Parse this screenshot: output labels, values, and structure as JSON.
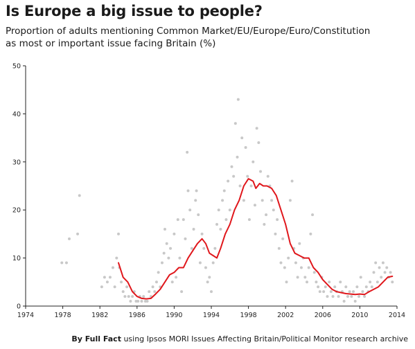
{
  "chart_data": {
    "type": "scatter",
    "title": "Is Europe a big issue to people?",
    "subtitle_lines": [
      "Proportion of adults mentioning Common Market/EU/Europe/Euro/Constitution",
      "as most or important issue facing Britain (%)"
    ],
    "xlabel": "",
    "ylabel": "",
    "xlim": [
      1974,
      2014
    ],
    "ylim": [
      0,
      50
    ],
    "x_ticks": [
      1974,
      1978,
      1982,
      1986,
      1990,
      1994,
      1998,
      2002,
      2006,
      2010,
      2014
    ],
    "y_ticks": [
      0,
      10,
      20,
      30,
      40,
      50
    ],
    "grid": false,
    "series": [
      {
        "kind": "points",
        "color": "#c8c8c8",
        "points": [
          [
            1977.9,
            9
          ],
          [
            1978.4,
            9
          ],
          [
            1978.7,
            14
          ],
          [
            1979.6,
            15
          ],
          [
            1979.8,
            23
          ],
          [
            1982.2,
            4
          ],
          [
            1982.5,
            6
          ],
          [
            1982.8,
            5
          ],
          [
            1983.1,
            6
          ],
          [
            1983.4,
            8
          ],
          [
            1983.6,
            4
          ],
          [
            1983.8,
            10
          ],
          [
            1984.0,
            15
          ],
          [
            1984.1,
            8
          ],
          [
            1984.3,
            5
          ],
          [
            1984.5,
            3
          ],
          [
            1984.7,
            2
          ],
          [
            1984.9,
            4
          ],
          [
            1985.1,
            2
          ],
          [
            1985.3,
            1
          ],
          [
            1985.5,
            2
          ],
          [
            1985.7,
            3
          ],
          [
            1985.9,
            1
          ],
          [
            1986.1,
            1
          ],
          [
            1986.3,
            2
          ],
          [
            1986.5,
            1
          ],
          [
            1986.7,
            2
          ],
          [
            1986.9,
            1
          ],
          [
            1987.1,
            1
          ],
          [
            1987.3,
            3
          ],
          [
            1987.5,
            2
          ],
          [
            1987.7,
            4
          ],
          [
            1987.9,
            3
          ],
          [
            1988.1,
            5
          ],
          [
            1988.3,
            7
          ],
          [
            1988.5,
            4
          ],
          [
            1988.7,
            9
          ],
          [
            1988.9,
            11
          ],
          [
            1989.0,
            16
          ],
          [
            1989.2,
            13
          ],
          [
            1989.4,
            10
          ],
          [
            1989.6,
            12
          ],
          [
            1989.8,
            5
          ],
          [
            1990.0,
            15
          ],
          [
            1990.2,
            6
          ],
          [
            1990.4,
            18
          ],
          [
            1990.6,
            10
          ],
          [
            1990.8,
            3
          ],
          [
            1991.0,
            18
          ],
          [
            1991.2,
            14
          ],
          [
            1991.4,
            32
          ],
          [
            1991.5,
            24
          ],
          [
            1991.7,
            20
          ],
          [
            1991.9,
            12
          ],
          [
            1992.1,
            16
          ],
          [
            1992.3,
            22
          ],
          [
            1992.4,
            24
          ],
          [
            1992.6,
            19
          ],
          [
            1992.8,
            9
          ],
          [
            1993.0,
            15
          ],
          [
            1993.2,
            12
          ],
          [
            1993.4,
            8
          ],
          [
            1993.6,
            5
          ],
          [
            1993.8,
            6
          ],
          [
            1994.0,
            3
          ],
          [
            1994.2,
            9
          ],
          [
            1994.4,
            12
          ],
          [
            1994.6,
            17
          ],
          [
            1994.8,
            20
          ],
          [
            1995.0,
            16
          ],
          [
            1995.2,
            22
          ],
          [
            1995.4,
            24
          ],
          [
            1995.6,
            18
          ],
          [
            1995.8,
            26
          ],
          [
            1996.0,
            20
          ],
          [
            1996.2,
            29
          ],
          [
            1996.4,
            27
          ],
          [
            1996.6,
            38
          ],
          [
            1996.8,
            31
          ],
          [
            1996.9,
            43
          ],
          [
            1997.1,
            25
          ],
          [
            1997.3,
            35
          ],
          [
            1997.5,
            22
          ],
          [
            1997.7,
            33
          ],
          [
            1997.9,
            27
          ],
          [
            1998.1,
            18
          ],
          [
            1998.3,
            25
          ],
          [
            1998.5,
            30
          ],
          [
            1998.7,
            21
          ],
          [
            1998.9,
            37
          ],
          [
            1999.1,
            34
          ],
          [
            1999.3,
            28
          ],
          [
            1999.5,
            22
          ],
          [
            1999.7,
            17
          ],
          [
            1999.9,
            19
          ],
          [
            2000.1,
            27
          ],
          [
            2000.3,
            25
          ],
          [
            2000.5,
            22
          ],
          [
            2000.7,
            20
          ],
          [
            2000.9,
            15
          ],
          [
            2001.1,
            18
          ],
          [
            2001.3,
            12
          ],
          [
            2001.5,
            9
          ],
          [
            2001.7,
            14
          ],
          [
            2001.9,
            8
          ],
          [
            2002.1,
            5
          ],
          [
            2002.3,
            10
          ],
          [
            2002.5,
            22
          ],
          [
            2002.7,
            26
          ],
          [
            2002.9,
            12
          ],
          [
            2003.1,
            9
          ],
          [
            2003.3,
            6
          ],
          [
            2003.5,
            13
          ],
          [
            2003.7,
            8
          ],
          [
            2003.9,
            10
          ],
          [
            2004.1,
            6
          ],
          [
            2004.3,
            5
          ],
          [
            2004.5,
            8
          ],
          [
            2004.7,
            15
          ],
          [
            2004.9,
            19
          ],
          [
            2005.1,
            7
          ],
          [
            2005.3,
            5
          ],
          [
            2005.5,
            4
          ],
          [
            2005.7,
            3
          ],
          [
            2005.9,
            6
          ],
          [
            2006.1,
            3
          ],
          [
            2006.3,
            4
          ],
          [
            2006.5,
            2
          ],
          [
            2006.7,
            5
          ],
          [
            2006.9,
            3
          ],
          [
            2007.1,
            2
          ],
          [
            2007.3,
            4
          ],
          [
            2007.5,
            3
          ],
          [
            2007.7,
            2
          ],
          [
            2007.9,
            5
          ],
          [
            2008.1,
            3
          ],
          [
            2008.3,
            1
          ],
          [
            2008.5,
            4
          ],
          [
            2008.7,
            2
          ],
          [
            2008.9,
            3
          ],
          [
            2009.1,
            2
          ],
          [
            2009.3,
            3
          ],
          [
            2009.5,
            1
          ],
          [
            2009.7,
            4
          ],
          [
            2009.9,
            2
          ],
          [
            2010.1,
            6
          ],
          [
            2010.3,
            3
          ],
          [
            2010.5,
            2
          ],
          [
            2010.7,
            4
          ],
          [
            2010.9,
            3
          ],
          [
            2011.1,
            5
          ],
          [
            2011.3,
            4
          ],
          [
            2011.5,
            7
          ],
          [
            2011.7,
            9
          ],
          [
            2011.9,
            5
          ],
          [
            2012.1,
            8
          ],
          [
            2012.3,
            6
          ],
          [
            2012.5,
            9
          ],
          [
            2012.7,
            7
          ],
          [
            2012.9,
            8
          ],
          [
            2013.1,
            6
          ],
          [
            2013.3,
            7
          ],
          [
            2013.5,
            5
          ]
        ]
      },
      {
        "kind": "line",
        "color": "#e0161b",
        "points": [
          [
            1984.0,
            9
          ],
          [
            1984.5,
            6
          ],
          [
            1985.0,
            5
          ],
          [
            1985.5,
            3
          ],
          [
            1986.0,
            2
          ],
          [
            1986.5,
            1.6
          ],
          [
            1987.0,
            1.5
          ],
          [
            1987.5,
            1.6
          ],
          [
            1988.0,
            2.5
          ],
          [
            1988.5,
            3.5
          ],
          [
            1989.0,
            5
          ],
          [
            1989.5,
            6.5
          ],
          [
            1990.0,
            7
          ],
          [
            1990.5,
            8
          ],
          [
            1991.0,
            8
          ],
          [
            1991.5,
            10
          ],
          [
            1992.0,
            11.5
          ],
          [
            1992.5,
            13
          ],
          [
            1993.0,
            14
          ],
          [
            1993.4,
            13
          ],
          [
            1993.8,
            11
          ],
          [
            1994.2,
            10.5
          ],
          [
            1994.6,
            10
          ],
          [
            1995.0,
            12
          ],
          [
            1995.5,
            15
          ],
          [
            1996.0,
            17
          ],
          [
            1996.5,
            20
          ],
          [
            1997.0,
            22
          ],
          [
            1997.5,
            25
          ],
          [
            1998.0,
            26.5
          ],
          [
            1998.5,
            26
          ],
          [
            1998.8,
            24.5
          ],
          [
            1999.2,
            25.5
          ],
          [
            1999.6,
            25
          ],
          [
            2000.0,
            25
          ],
          [
            2000.5,
            24.5
          ],
          [
            2001.0,
            23
          ],
          [
            2001.5,
            20
          ],
          [
            2002.0,
            17
          ],
          [
            2002.5,
            13
          ],
          [
            2003.0,
            11
          ],
          [
            2003.5,
            10.5
          ],
          [
            2004.0,
            10
          ],
          [
            2004.5,
            10
          ],
          [
            2005.0,
            8
          ],
          [
            2005.5,
            7
          ],
          [
            2006.0,
            5.5
          ],
          [
            2006.5,
            4.5
          ],
          [
            2007.0,
            3.5
          ],
          [
            2007.5,
            3
          ],
          [
            2008.0,
            2.8
          ],
          [
            2008.5,
            2.6
          ],
          [
            2009.0,
            2.5
          ],
          [
            2009.5,
            2.4
          ],
          [
            2010.0,
            2.5
          ],
          [
            2010.5,
            2.4
          ],
          [
            2011.0,
            3
          ],
          [
            2011.5,
            3.5
          ],
          [
            2012.0,
            4
          ],
          [
            2012.5,
            5
          ],
          [
            2013.0,
            6
          ],
          [
            2013.5,
            6.2
          ]
        ]
      }
    ]
  },
  "footer": {
    "brand": "By Full Fact",
    "rest": " using Ipsos MORI Issues Affecting Britain/Political Monitor research archive"
  }
}
